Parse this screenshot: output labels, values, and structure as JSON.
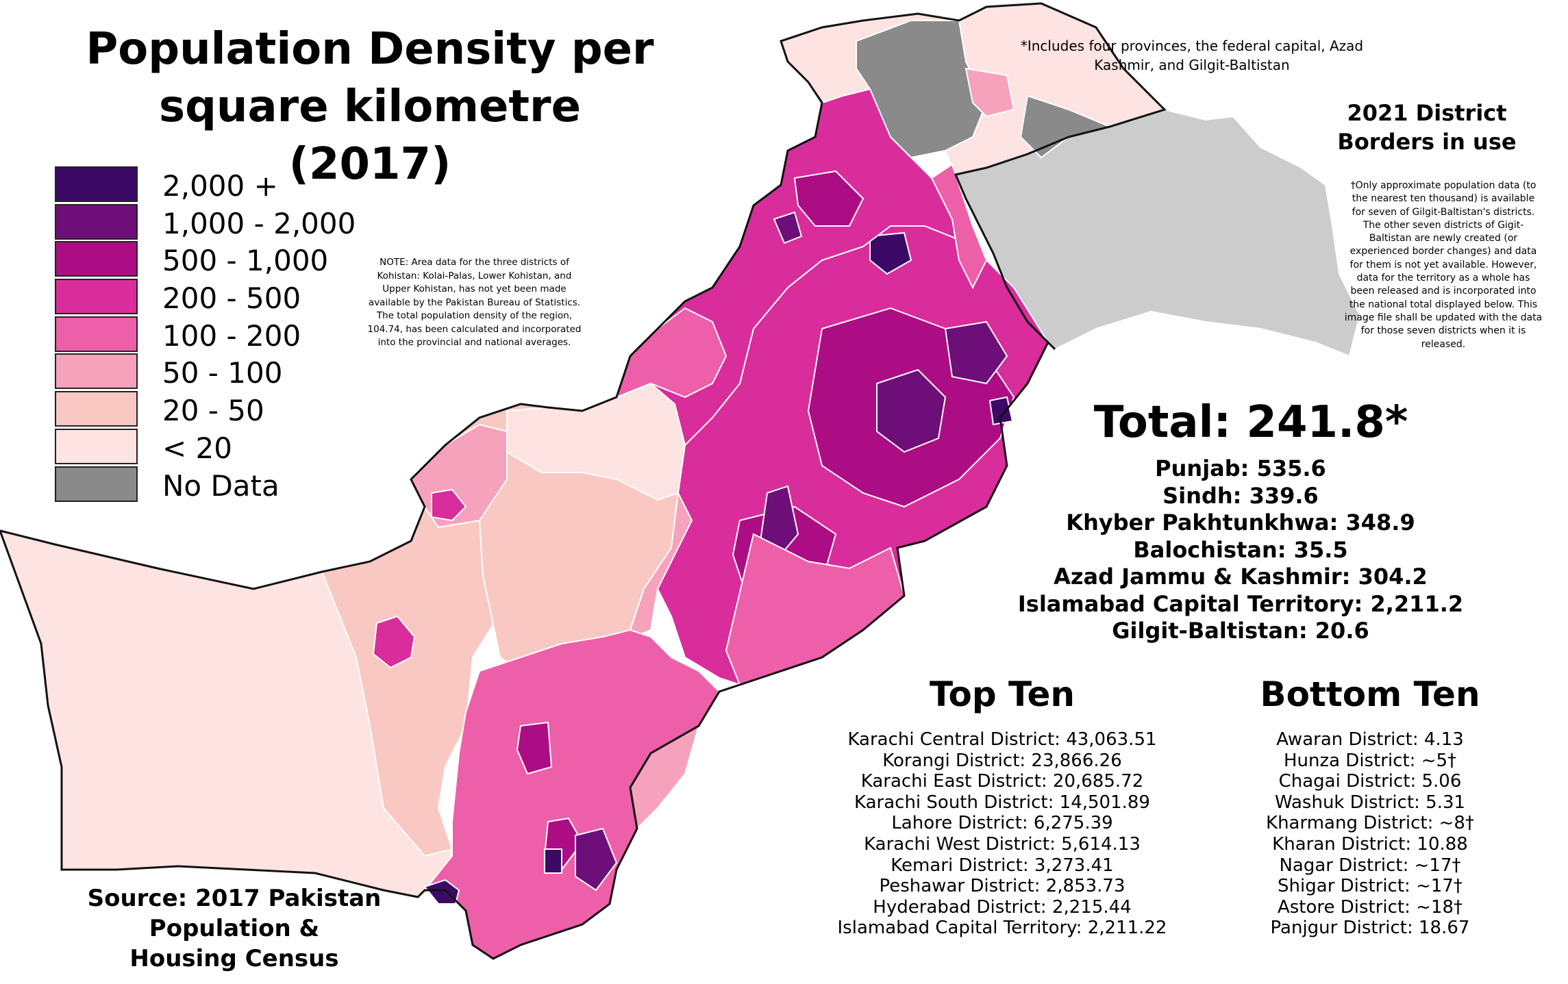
{
  "title": {
    "line1": "Population Density per",
    "line2": "square kilometre (2017)"
  },
  "legend": [
    {
      "label": "2,000 +",
      "color": "#3c0a66"
    },
    {
      "label": "1,000 - 2,000",
      "color": "#6e0f79"
    },
    {
      "label": "500 - 1,000",
      "color": "#ad0d84"
    },
    {
      "label": "200 - 500",
      "color": "#d92d9c"
    },
    {
      "label": "100 - 200",
      "color": "#ee5fa9"
    },
    {
      "label": "50 - 100",
      "color": "#f6a2bc"
    },
    {
      "label": "20 - 50",
      "color": "#f9c8c2"
    },
    {
      "label": "< 20",
      "color": "#fde3e1"
    },
    {
      "label": "No Data",
      "color": "#8a8a8a"
    }
  ],
  "note": "NOTE: Area data for the three districts of Kohistan: Kolai-Palas, Lower Kohistan, and Upper Kohistan, has not yet been made available by the Pakistan Bureau of Statistics. The total population density of the region, 104.74, has been calculated and incorporated into the provincial and national averages.",
  "includes_note": "*Includes four provinces, the federal capital, Azad Kashmir, and Gilgit-Baltistan",
  "borders_note": {
    "line1": "2021 District",
    "line2": "Borders in use"
  },
  "dagger_note": "†Only approximate population data (to the nearest ten thousand) is available for seven of Gilgit-Baltistan's districts. The other seven districts of Gigit-Baltistan are newly created (or experienced border changes) and data for them is not yet available. However, data for the territory as a whole has been released and is incorporated into the national total displayed below. This image file shall be updated with the data for those seven districts when it is released.",
  "total": "Total: 241.8*",
  "provinces": [
    "Punjab: 535.6",
    "Sindh: 339.6",
    "Khyber Pakhtunkhwa: 348.9",
    "Balochistan: 35.5",
    "Azad Jammu & Kashmir: 304.2",
    "Islamabad Capital Territory: 2,211.2",
    "Gilgit-Baltistan: 20.6"
  ],
  "top_ten": {
    "heading": "Top Ten",
    "items": [
      "Karachi Central District: 43,063.51",
      "Korangi District: 23,866.26",
      "Karachi East District: 20,685.72",
      "Karachi South District: 14,501.89",
      "Lahore District: 6,275.39",
      "Karachi West District: 5,614.13",
      "Kemari District: 3,273.41",
      "Peshawar District: 2,853.73",
      "Hyderabad District: 2,215.44",
      "Islamabad Capital Territory: 2,211.22"
    ]
  },
  "bottom_ten": {
    "heading": "Bottom Ten",
    "items": [
      "Awaran District: 4.13",
      "Hunza District: ~5†",
      "Chagai District: 5.06",
      "Washuk District: 5.31",
      "Kharmang District: ~8†",
      "Kharan District: 10.88",
      "Nagar District: ~17†",
      "Shigar District: ~17†",
      "Astore District: ~18†",
      "Panjgur District: 18.67"
    ]
  },
  "source": {
    "line1": "Source: 2017 Pakistan",
    "line2": "Population &",
    "line3": "Housing Census"
  },
  "map_colors": {
    "disputed": "#cccccc",
    "border": "#111111",
    "district_line": "#ffffff"
  }
}
